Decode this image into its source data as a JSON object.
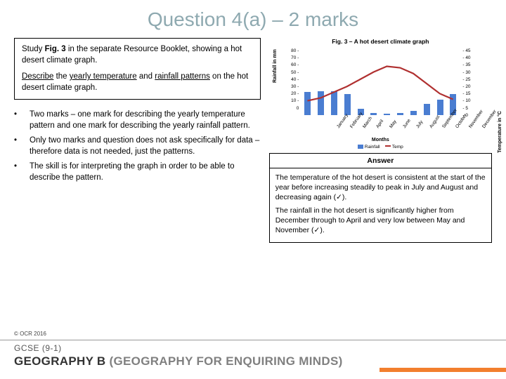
{
  "title": {
    "text": "Question 4(a) – 2 marks",
    "color": "#8ea9b0",
    "fontsize": 28
  },
  "question": {
    "p1_pre": "Study ",
    "p1_bold": "Fig. 3",
    "p1_post": " in the separate Resource Booklet, showing a hot desert climate graph.",
    "p2_u1": "Describe",
    "p2_mid1": " the ",
    "p2_u2": "yearly temperature",
    "p2_mid2": " and ",
    "p2_u3": "rainfall patterns",
    "p2_post": " on the hot desert climate graph."
  },
  "bullets": [
    "Two marks – one mark for describing the yearly temperature pattern and one mark for describing the yearly rainfall pattern.",
    "Only two marks and question does not ask specifically for data – therefore data is not needed, just the patterns.",
    "The skill is for interpreting the graph in order to be able to describe the pattern."
  ],
  "figure": {
    "caption": "Fig. 3 – A hot desert climate graph",
    "months": [
      "January",
      "February",
      "March",
      "April",
      "May",
      "June",
      "July",
      "August",
      "September",
      "October",
      "November",
      "December"
    ],
    "rainfall_mm": [
      29,
      30,
      30,
      26,
      8,
      3,
      2,
      3,
      5,
      14,
      19,
      26
    ],
    "temp_c": [
      10,
      12,
      16,
      20,
      25,
      30,
      34,
      33,
      29,
      22,
      15,
      11
    ],
    "yleft_ticks": [
      80,
      70,
      60,
      50,
      40,
      30,
      20,
      10,
      0
    ],
    "yright_ticks": [
      45,
      40,
      35,
      30,
      25,
      20,
      15,
      10,
      5,
      0
    ],
    "ylim_left": [
      0,
      80
    ],
    "ylim_right": [
      0,
      45
    ],
    "bar_color": "#4a7dd1",
    "line_color": "#b03030",
    "line_width": 2.2,
    "ylabel_left": "Rainfall in mm",
    "ylabel_right": "Temperature in °C",
    "xlabel": "Months",
    "legend_rain": "Rainfall",
    "legend_temp": "Temp",
    "background": "#ffffff"
  },
  "answer": {
    "header": "Answer",
    "p1": "The temperature of the hot desert is consistent at the start of the year before increasing steadily to peak in July and August and decreasing again (✓).",
    "p2": "The rainfall in the hot desert is significantly higher from December through to April and very low between May and November (✓)."
  },
  "footer": {
    "copyright": "© OCR 2016",
    "course": "GCSE (9-1)",
    "subject_main": "GEOGRAPHY B ",
    "subject_sub": "(GEOGRAPHY FOR ENQUIRING MINDS)",
    "subject_main_color": "#333333",
    "subject_sub_color": "#808080",
    "stripe_color": "#f27f2e"
  }
}
